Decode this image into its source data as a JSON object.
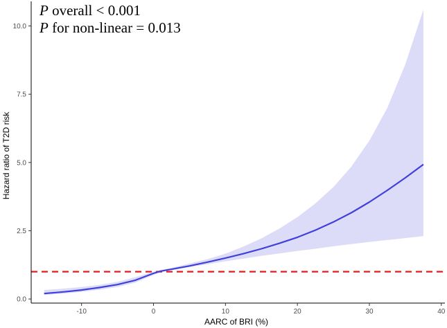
{
  "chart_data": {
    "type": "line",
    "title": "",
    "xlabel": "AARC of BRI (%)",
    "ylabel": "Hazard ratio of T2D risk",
    "xlim": [
      -17,
      40.5
    ],
    "ylim": [
      -0.15,
      10.9
    ],
    "x_ticks": [
      -10,
      0,
      10,
      20,
      30,
      40
    ],
    "x_tick_labels": [
      "-10",
      "0",
      "10",
      "20",
      "30",
      "40"
    ],
    "y_ticks": [
      0.0,
      2.5,
      5.0,
      7.5,
      10.0
    ],
    "y_tick_labels": [
      "0.0",
      "2.5",
      "5.0",
      "7.5",
      "10.0"
    ],
    "grid": false,
    "annotations": [
      {
        "prefix": "P",
        "text": " overall < 0.001"
      },
      {
        "prefix": "P",
        "text": " for non-linear = 0.013"
      }
    ],
    "reference_line": {
      "y": 1.0,
      "style": "dashed",
      "color": "#e41a1c"
    },
    "series": [
      {
        "name": "Hazard ratio",
        "color": "#3f3fdc",
        "x": [
          -15.2,
          -12.5,
          -10,
          -7.5,
          -5,
          -2.5,
          0,
          1,
          2.5,
          5,
          7.5,
          10,
          12.5,
          15,
          17.5,
          20,
          22.5,
          25,
          27.5,
          30,
          32.5,
          35,
          37.5
        ],
        "y": [
          0.2,
          0.26,
          0.33,
          0.42,
          0.53,
          0.69,
          0.94,
          1.02,
          1.09,
          1.21,
          1.35,
          1.5,
          1.66,
          1.84,
          2.04,
          2.26,
          2.52,
          2.82,
          3.16,
          3.55,
          3.98,
          4.44,
          4.93
        ],
        "ci_lower": [
          0.15,
          0.2,
          0.26,
          0.34,
          0.44,
          0.6,
          0.88,
          0.98,
          1.06,
          1.17,
          1.27,
          1.38,
          1.48,
          1.58,
          1.67,
          1.76,
          1.84,
          1.93,
          2.01,
          2.09,
          2.16,
          2.23,
          2.3
        ],
        "ci_upper": [
          0.33,
          0.38,
          0.44,
          0.52,
          0.63,
          0.8,
          1.0,
          1.06,
          1.14,
          1.3,
          1.46,
          1.66,
          1.92,
          2.22,
          2.58,
          3.0,
          3.5,
          4.1,
          4.85,
          5.8,
          7.0,
          8.6,
          10.6
        ],
        "ci_color": "#dcdcf8"
      }
    ]
  }
}
